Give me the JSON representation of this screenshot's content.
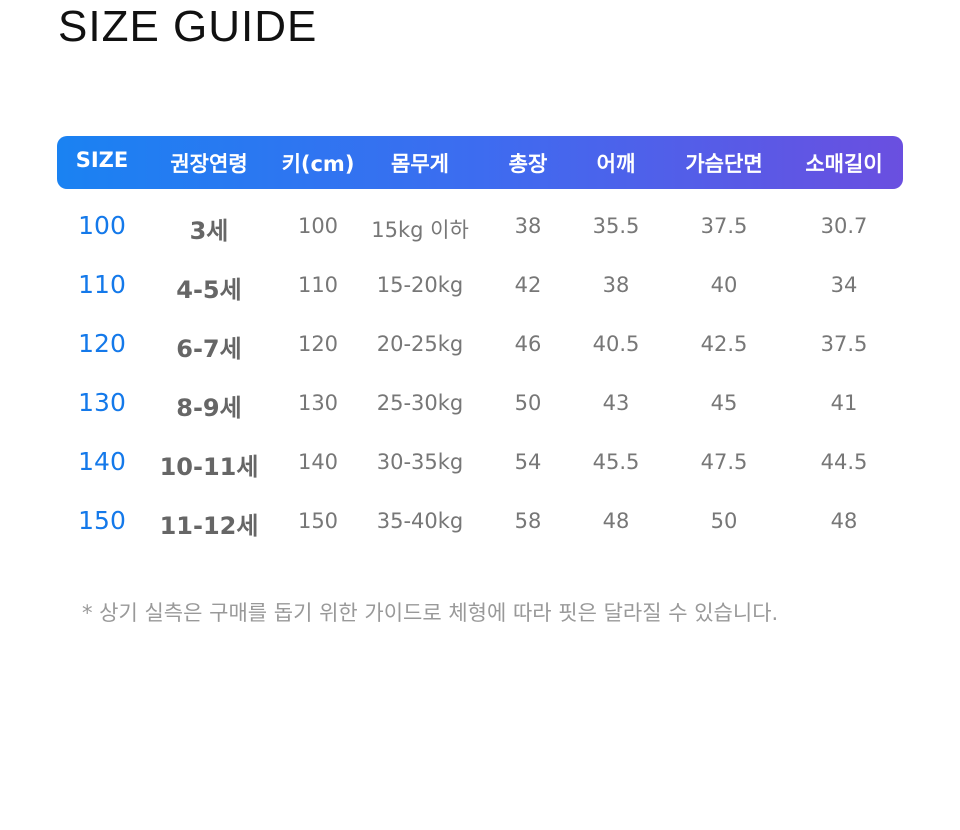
{
  "title": "SIZE GUIDE",
  "table": {
    "headers": [
      "SIZE",
      "권장연령",
      "키(cm)",
      "몸무게",
      "총장",
      "어깨",
      "가슴단면",
      "소매길이"
    ],
    "rows": [
      [
        "100",
        "3세",
        "100",
        "15kg 이하",
        "38",
        "35.5",
        "37.5",
        "30.7"
      ],
      [
        "110",
        "4-5세",
        "110",
        "15-20kg",
        "42",
        "38",
        "40",
        "34"
      ],
      [
        "120",
        "6-7세",
        "120",
        "20-25kg",
        "46",
        "40.5",
        "42.5",
        "37.5"
      ],
      [
        "130",
        "8-9세",
        "130",
        "25-30kg",
        "50",
        "43",
        "45",
        "41"
      ],
      [
        "140",
        "10-11세",
        "140",
        "30-35kg",
        "54",
        "45.5",
        "47.5",
        "44.5"
      ],
      [
        "150",
        "11-12세",
        "150",
        "35-40kg",
        "58",
        "48",
        "50",
        "48"
      ]
    ]
  },
  "note": "* 상기 실측은 구매를 돕기 위한 가이드로 체형에 따라 핏은 달라질 수 있습니다.",
  "colors": {
    "size_accent": "#1479ea",
    "header_gradient_start": "#1a82f2",
    "header_gradient_end": "#6a4fe0"
  }
}
